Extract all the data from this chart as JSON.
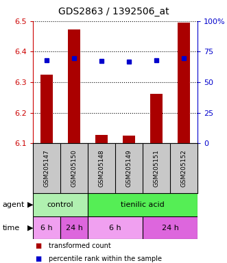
{
  "title": "GDS2863 / 1392506_at",
  "samples": [
    "GSM205147",
    "GSM205150",
    "GSM205148",
    "GSM205149",
    "GSM205151",
    "GSM205152"
  ],
  "bar_values": [
    6.325,
    6.472,
    6.128,
    6.126,
    6.262,
    6.494
  ],
  "bar_color": "#aa0000",
  "blue_dot_values": [
    6.372,
    6.378,
    6.37,
    6.368,
    6.372,
    6.378
  ],
  "blue_dot_color": "#0000cc",
  "ylim_left": [
    6.1,
    6.5
  ],
  "ylim_right": [
    0,
    100
  ],
  "yticks_left": [
    6.1,
    6.2,
    6.3,
    6.4,
    6.5
  ],
  "yticks_right": [
    0,
    25,
    50,
    75,
    100
  ],
  "ytick_labels_right": [
    "0",
    "25",
    "50",
    "75",
    "100%"
  ],
  "bar_bottom": 6.1,
  "agent_labels": [
    {
      "text": "control",
      "start": 0,
      "end": 2,
      "color": "#b0f0b0"
    },
    {
      "text": "tienilic acid",
      "start": 2,
      "end": 6,
      "color": "#55ee55"
    }
  ],
  "time_labels": [
    {
      "text": "6 h",
      "start": 0,
      "end": 1,
      "color": "#f0a0f0"
    },
    {
      "text": "24 h",
      "start": 1,
      "end": 2,
      "color": "#dd66dd"
    },
    {
      "text": "6 h",
      "start": 2,
      "end": 4,
      "color": "#f0a0f0"
    },
    {
      "text": "24 h",
      "start": 4,
      "end": 6,
      "color": "#dd66dd"
    }
  ],
  "legend_red_label": "transformed count",
  "legend_blue_label": "percentile rank within the sample",
  "title_fontsize": 10,
  "axis_label_color_left": "#cc0000",
  "axis_label_color_right": "#0000cc",
  "background_color": "#ffffff",
  "plot_bg_color": "#ffffff",
  "sample_bg_color": "#c8c8c8",
  "n_samples": 6
}
